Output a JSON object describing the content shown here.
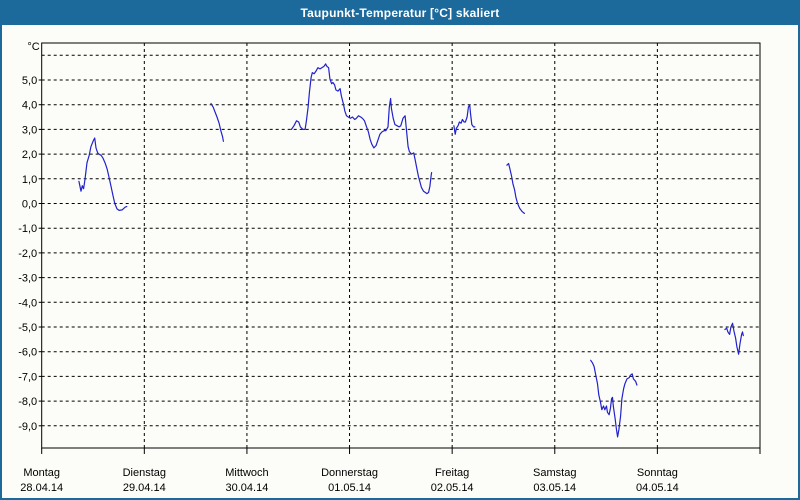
{
  "window": {
    "title": "Taupunkt-Temperatur [°C] skaliert",
    "title_bar_color": "#1c699c",
    "border_color": "#1c699c",
    "background_color": "#fcfdf8"
  },
  "chart_data": {
    "type": "line",
    "title": "Taupunkt-Temperatur [°C] skaliert",
    "line_color": "#2222cc",
    "grid": "dashed-black",
    "legend": "none",
    "y_axis": {
      "unit": "°C",
      "ylim": [
        -9.9,
        6.5
      ],
      "gridline_values": [
        6,
        5,
        4,
        3,
        2,
        1,
        0,
        -1,
        -2,
        -3,
        -4,
        -5,
        -6,
        -7,
        -8,
        -9
      ],
      "tick_values": [
        5,
        4,
        3,
        2,
        1,
        0,
        -1,
        -2,
        -3,
        -4,
        -5,
        -6,
        -7,
        -8,
        -9
      ],
      "tick_labels": [
        "5,0",
        "4,0",
        "3,0",
        "2,0",
        "1,0",
        "0,0",
        "-1,0",
        "-2,0",
        "-3,0",
        "-4,0",
        "-5,0",
        "-6,0",
        "-7,0",
        "-8,0",
        "-9,0"
      ]
    },
    "x_axis": {
      "unit": "hours since Montag 00:00, one tick per day",
      "days": [
        {
          "name": "Montag",
          "date": "28.04.14"
        },
        {
          "name": "Dienstag",
          "date": "29.04.14"
        },
        {
          "name": "Mittwoch",
          "date": "30.04.14"
        },
        {
          "name": "Donnerstag",
          "date": "01.05.14"
        },
        {
          "name": "Freitag",
          "date": "02.05.14"
        },
        {
          "name": "Samstag",
          "date": "03.05.14"
        },
        {
          "name": "Sonntag",
          "date": "04.05.14"
        }
      ]
    },
    "series": [
      {
        "name": "Taupunkt-Temperatur",
        "segments": [
          [
            [
              8.7,
              0.9
            ],
            [
              9.2,
              0.5
            ],
            [
              9.5,
              0.72
            ],
            [
              9.8,
              0.6
            ],
            [
              10.1,
              0.95
            ],
            [
              10.6,
              1.65
            ],
            [
              11.1,
              1.95
            ],
            [
              11.5,
              2.3
            ],
            [
              12.1,
              2.55
            ],
            [
              12.4,
              2.65
            ],
            [
              12.7,
              2.25
            ],
            [
              13.1,
              2.05
            ],
            [
              13.4,
              2.0
            ],
            [
              13.9,
              1.95
            ],
            [
              14.3,
              1.85
            ],
            [
              14.8,
              1.65
            ],
            [
              15.3,
              1.4
            ],
            [
              15.7,
              1.1
            ],
            [
              16.2,
              0.7
            ],
            [
              16.7,
              0.3
            ],
            [
              17.1,
              0.0
            ],
            [
              17.6,
              -0.22
            ],
            [
              18.1,
              -0.28
            ],
            [
              18.8,
              -0.26
            ],
            [
              19.5,
              -0.15
            ],
            [
              19.9,
              -0.12
            ]
          ],
          [
            [
              39.6,
              4.05
            ],
            [
              40.1,
              3.9
            ],
            [
              40.5,
              3.72
            ],
            [
              41.0,
              3.5
            ],
            [
              41.5,
              3.25
            ],
            [
              41.9,
              2.95
            ],
            [
              42.3,
              2.7
            ],
            [
              42.5,
              2.52
            ]
          ],
          [
            [
              58.4,
              3.0
            ],
            [
              59.0,
              3.15
            ],
            [
              59.6,
              3.35
            ],
            [
              60.1,
              3.3
            ],
            [
              60.5,
              3.1
            ],
            [
              61.1,
              3.0
            ],
            [
              61.6,
              3.0
            ],
            [
              61.9,
              3.35
            ],
            [
              62.3,
              3.9
            ],
            [
              62.6,
              4.5
            ],
            [
              63.0,
              5.1
            ],
            [
              63.3,
              5.3
            ],
            [
              63.7,
              5.25
            ],
            [
              64.1,
              5.35
            ],
            [
              64.6,
              5.5
            ],
            [
              65.1,
              5.45
            ],
            [
              65.5,
              5.5
            ],
            [
              66.0,
              5.55
            ],
            [
              66.4,
              5.65
            ],
            [
              66.7,
              5.55
            ],
            [
              67.1,
              5.5
            ],
            [
              67.4,
              5.05
            ],
            [
              67.8,
              4.85
            ],
            [
              68.1,
              4.9
            ],
            [
              68.5,
              4.8
            ],
            [
              68.8,
              4.6
            ],
            [
              69.3,
              4.55
            ],
            [
              69.8,
              4.65
            ],
            [
              70.1,
              4.35
            ],
            [
              70.6,
              4.0
            ],
            [
              70.9,
              3.75
            ],
            [
              71.3,
              3.55
            ],
            [
              71.7,
              3.5
            ],
            [
              72.2,
              3.45
            ],
            [
              72.7,
              3.5
            ],
            [
              73.2,
              3.4
            ],
            [
              73.6,
              3.45
            ],
            [
              74.1,
              3.55
            ],
            [
              74.6,
              3.5
            ],
            [
              75.0,
              3.45
            ],
            [
              75.5,
              3.35
            ],
            [
              76.0,
              3.1
            ],
            [
              76.4,
              2.9
            ],
            [
              76.8,
              2.6
            ],
            [
              77.2,
              2.4
            ],
            [
              77.7,
              2.25
            ],
            [
              78.2,
              2.35
            ],
            [
              78.7,
              2.6
            ],
            [
              79.1,
              2.8
            ],
            [
              79.6,
              2.9
            ],
            [
              80.1,
              2.95
            ],
            [
              80.5,
              2.95
            ],
            [
              81.0,
              3.1
            ],
            [
              81.3,
              3.9
            ],
            [
              81.6,
              4.25
            ],
            [
              81.8,
              3.85
            ],
            [
              82.2,
              3.45
            ],
            [
              82.6,
              3.2
            ],
            [
              83.1,
              3.15
            ],
            [
              83.6,
              3.1
            ],
            [
              84.0,
              3.15
            ],
            [
              84.5,
              3.45
            ],
            [
              85.0,
              3.55
            ],
            [
              85.3,
              3.0
            ],
            [
              85.7,
              2.3
            ],
            [
              86.0,
              2.1
            ],
            [
              86.5,
              2.0
            ],
            [
              87.0,
              2.05
            ],
            [
              87.3,
              1.8
            ],
            [
              87.7,
              1.45
            ],
            [
              88.1,
              1.1
            ],
            [
              88.5,
              0.85
            ],
            [
              88.8,
              0.65
            ],
            [
              89.3,
              0.5
            ],
            [
              89.7,
              0.45
            ],
            [
              90.1,
              0.4
            ],
            [
              90.5,
              0.45
            ],
            [
              90.8,
              0.7
            ],
            [
              91.1,
              1.15
            ],
            [
              91.2,
              1.25
            ]
          ],
          [
            [
              96.4,
              3.15
            ],
            [
              96.7,
              2.8
            ],
            [
              97.0,
              3.05
            ],
            [
              97.4,
              3.15
            ],
            [
              97.7,
              3.3
            ],
            [
              98.1,
              3.25
            ],
            [
              98.4,
              3.4
            ],
            [
              98.8,
              3.3
            ],
            [
              99.1,
              3.3
            ],
            [
              99.5,
              3.5
            ],
            [
              99.8,
              3.9
            ],
            [
              100.1,
              4.0
            ],
            [
              100.3,
              3.65
            ],
            [
              100.6,
              3.2
            ],
            [
              101.0,
              3.1
            ],
            [
              101.3,
              3.1
            ]
          ],
          [
            [
              108.8,
              1.55
            ],
            [
              109.2,
              1.62
            ],
            [
              109.5,
              1.4
            ],
            [
              109.9,
              1.1
            ],
            [
              110.2,
              0.8
            ],
            [
              110.6,
              0.55
            ],
            [
              110.9,
              0.25
            ],
            [
              111.3,
              0.0
            ],
            [
              111.8,
              -0.2
            ],
            [
              112.4,
              -0.33
            ],
            [
              112.9,
              -0.4
            ]
          ],
          [
            [
              128.4,
              -6.35
            ],
            [
              128.8,
              -6.45
            ],
            [
              129.2,
              -6.6
            ],
            [
              129.6,
              -6.95
            ],
            [
              130.0,
              -7.3
            ],
            [
              130.3,
              -7.75
            ],
            [
              130.7,
              -8.05
            ],
            [
              131.0,
              -8.35
            ],
            [
              131.4,
              -8.2
            ],
            [
              131.7,
              -8.35
            ],
            [
              132.1,
              -8.2
            ],
            [
              132.3,
              -8.45
            ],
            [
              132.7,
              -8.55
            ],
            [
              133.0,
              -8.3
            ],
            [
              133.3,
              -7.9
            ],
            [
              133.5,
              -7.85
            ],
            [
              133.7,
              -8.2
            ],
            [
              134.1,
              -8.7
            ],
            [
              134.4,
              -9.1
            ],
            [
              134.7,
              -9.45
            ],
            [
              135.0,
              -9.15
            ],
            [
              135.4,
              -8.6
            ],
            [
              135.7,
              -7.9
            ],
            [
              136.1,
              -7.5
            ],
            [
              136.4,
              -7.3
            ],
            [
              136.9,
              -7.1
            ],
            [
              137.4,
              -7.05
            ],
            [
              137.7,
              -6.95
            ],
            [
              138.1,
              -6.9
            ],
            [
              138.4,
              -7.1
            ],
            [
              138.9,
              -7.2
            ],
            [
              139.2,
              -7.35
            ]
          ],
          [
            [
              159.8,
              -5.1
            ],
            [
              160.2,
              -5.05
            ],
            [
              160.5,
              -5.2
            ],
            [
              160.9,
              -5.3
            ],
            [
              161.2,
              -5.0
            ],
            [
              161.6,
              -4.85
            ],
            [
              161.9,
              -5.15
            ],
            [
              162.3,
              -5.45
            ],
            [
              162.6,
              -5.8
            ],
            [
              163.0,
              -6.1
            ],
            [
              163.3,
              -5.7
            ],
            [
              163.7,
              -5.3
            ],
            [
              163.9,
              -5.2
            ],
            [
              164.1,
              -5.35
            ]
          ]
        ]
      }
    ]
  }
}
